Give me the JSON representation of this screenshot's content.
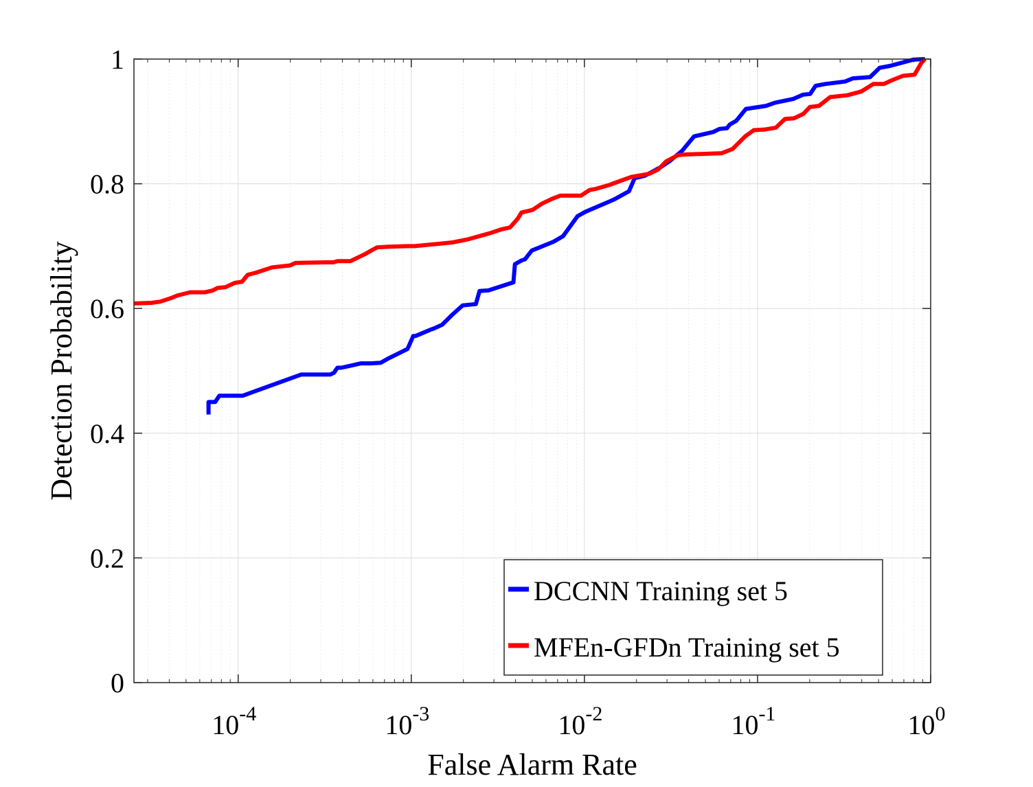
{
  "chart_data": {
    "type": "line",
    "xlabel": "False Alarm Rate",
    "ylabel": "Detection Probability",
    "xscale": "log",
    "xlim": [
      2.5e-05,
      1
    ],
    "ylim": [
      0,
      1
    ],
    "grid": true,
    "minor_grid": true,
    "legend_position": "bottom-right",
    "x_ticks": [
      0.0001,
      0.001,
      0.01,
      0.1,
      1
    ],
    "x_tick_labels": [
      {
        "base": "10",
        "exp": "-4"
      },
      {
        "base": "10",
        "exp": "-3"
      },
      {
        "base": "10",
        "exp": "-2"
      },
      {
        "base": "10",
        "exp": "-1"
      },
      {
        "base": "10",
        "exp": "0"
      }
    ],
    "y_ticks": [
      0,
      0.2,
      0.4,
      0.6,
      0.8,
      1
    ],
    "y_tick_labels": [
      "0",
      "0.2",
      "0.4",
      "0.6",
      "0.8",
      "1"
    ],
    "series": [
      {
        "name": "DCCNN Training set 5",
        "color": "#0000ff",
        "points": [
          [
            6.74e-05,
            0.43
          ],
          [
            6.74e-05,
            0.45
          ],
          [
            7.37e-05,
            0.45
          ],
          [
            7.78e-05,
            0.46
          ],
          [
            0.000106,
            0.46
          ],
          [
            0.000231,
            0.494
          ],
          [
            0.00034,
            0.494
          ],
          [
            0.000358,
            0.497
          ],
          [
            0.000374,
            0.505
          ],
          [
            0.000394,
            0.505
          ],
          [
            0.000513,
            0.512
          ],
          [
            0.000581,
            0.512
          ],
          [
            0.000666,
            0.513
          ],
          [
            0.000739,
            0.52
          ],
          [
            0.000951,
            0.535
          ],
          [
            0.001027,
            0.556
          ],
          [
            0.00106,
            0.556
          ],
          [
            0.00129,
            0.566
          ],
          [
            0.00135,
            0.568
          ],
          [
            0.00151,
            0.574
          ],
          [
            0.00171,
            0.589
          ],
          [
            0.00198,
            0.605
          ],
          [
            0.00236,
            0.607
          ],
          [
            0.00248,
            0.628
          ],
          [
            0.00279,
            0.629
          ],
          [
            0.00389,
            0.642
          ],
          [
            0.00397,
            0.671
          ],
          [
            0.00433,
            0.677
          ],
          [
            0.00454,
            0.679
          ],
          [
            0.00497,
            0.693
          ],
          [
            0.00663,
            0.707
          ],
          [
            0.00753,
            0.716
          ],
          [
            0.00913,
            0.748
          ],
          [
            0.01011,
            0.755
          ],
          [
            0.0149,
            0.775
          ],
          [
            0.0181,
            0.788
          ],
          [
            0.0195,
            0.809
          ],
          [
            0.0224,
            0.813
          ],
          [
            0.0277,
            0.827
          ],
          [
            0.0313,
            0.837
          ],
          [
            0.0367,
            0.853
          ],
          [
            0.043,
            0.876
          ],
          [
            0.0555,
            0.883
          ],
          [
            0.0603,
            0.888
          ],
          [
            0.0665,
            0.889
          ],
          [
            0.0692,
            0.895
          ],
          [
            0.0754,
            0.901
          ],
          [
            0.0857,
            0.92
          ],
          [
            0.1123,
            0.925
          ],
          [
            0.1262,
            0.93
          ],
          [
            0.1606,
            0.936
          ],
          [
            0.1837,
            0.943
          ],
          [
            0.2015,
            0.944
          ],
          [
            0.2164,
            0.957
          ],
          [
            0.2462,
            0.96
          ],
          [
            0.3204,
            0.964
          ],
          [
            0.3553,
            0.969
          ],
          [
            0.4468,
            0.971
          ],
          [
            0.5075,
            0.986
          ],
          [
            0.5811,
            0.989
          ],
          [
            0.7459,
            0.997
          ],
          [
            0.7921,
            0.999
          ],
          [
            0.9272,
            1.0
          ]
        ]
      },
      {
        "name": "MFEn-GFDn Training set 5",
        "color": "#ff0000",
        "points": [
          [
            2.5e-05,
            0.608
          ],
          [
            3.16e-05,
            0.609
          ],
          [
            3.55e-05,
            0.611
          ],
          [
            4.12e-05,
            0.617
          ],
          [
            4.48e-05,
            0.621
          ],
          [
            5.28e-05,
            0.626
          ],
          [
            6.44e-05,
            0.626
          ],
          [
            7.13e-05,
            0.629
          ],
          [
            7.61e-05,
            0.633
          ],
          [
            8.41e-05,
            0.634
          ],
          [
            9.55e-05,
            0.641
          ],
          [
            0.0001053,
            0.643
          ],
          [
            0.0001135,
            0.654
          ],
          [
            0.0001255,
            0.657
          ],
          [
            0.0001571,
            0.666
          ],
          [
            0.0001996,
            0.669
          ],
          [
            0.0002139,
            0.673
          ],
          [
            0.0003193,
            0.674
          ],
          [
            0.0003546,
            0.674
          ],
          [
            0.0003757,
            0.676
          ],
          [
            0.0004454,
            0.676
          ],
          [
            0.0005384,
            0.687
          ],
          [
            0.0005972,
            0.694
          ],
          [
            0.0006346,
            0.698
          ],
          [
            0.000739,
            0.699
          ],
          [
            0.000951,
            0.7
          ],
          [
            0.001047,
            0.7
          ],
          [
            0.00173,
            0.706
          ],
          [
            0.00213,
            0.711
          ],
          [
            0.00287,
            0.721
          ],
          [
            0.00332,
            0.727
          ],
          [
            0.00372,
            0.73
          ],
          [
            0.00412,
            0.744
          ],
          [
            0.00433,
            0.754
          ],
          [
            0.00501,
            0.758
          ],
          [
            0.00567,
            0.768
          ],
          [
            0.00651,
            0.776
          ],
          [
            0.00725,
            0.781
          ],
          [
            0.00955,
            0.781
          ],
          [
            0.0107,
            0.79
          ],
          [
            0.0117,
            0.792
          ],
          [
            0.0139,
            0.798
          ],
          [
            0.0159,
            0.804
          ],
          [
            0.0187,
            0.811
          ],
          [
            0.0237,
            0.816
          ],
          [
            0.0267,
            0.823
          ],
          [
            0.0297,
            0.836
          ],
          [
            0.0348,
            0.846
          ],
          [
            0.0388,
            0.847
          ],
          [
            0.0621,
            0.849
          ],
          [
            0.0719,
            0.856
          ],
          [
            0.0848,
            0.876
          ],
          [
            0.0952,
            0.886
          ],
          [
            0.1101,
            0.887
          ],
          [
            0.1277,
            0.89
          ],
          [
            0.1441,
            0.904
          ],
          [
            0.1622,
            0.905
          ],
          [
            0.1837,
            0.912
          ],
          [
            0.2005,
            0.923
          ],
          [
            0.2264,
            0.925
          ],
          [
            0.2627,
            0.939
          ],
          [
            0.3303,
            0.942
          ],
          [
            0.3973,
            0.948
          ],
          [
            0.4663,
            0.96
          ],
          [
            0.5358,
            0.96
          ],
          [
            0.5974,
            0.966
          ],
          [
            0.6907,
            0.973
          ],
          [
            0.8066,
            0.975
          ],
          [
            0.8847,
            0.994
          ],
          [
            0.9272,
            1.0
          ]
        ]
      }
    ]
  }
}
